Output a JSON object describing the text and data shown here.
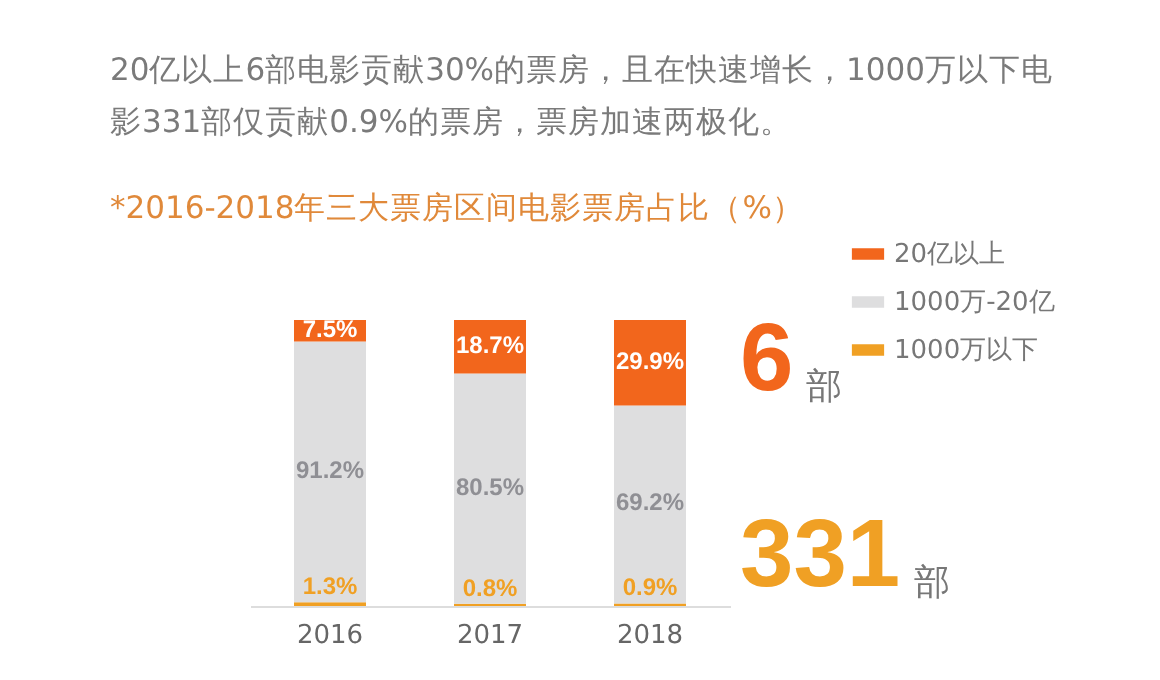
{
  "chart_data": {
    "type": "bar",
    "stacked": true,
    "subtitle": "20亿以上6部电影贡献30%的票房，且在快速增长，1000万以下电影331部仅贡献0.9%的票房，票房加速两极化。",
    "title": "*2016-2018年三大票房区间电影票房占比（%）",
    "categories": [
      "2016",
      "2017",
      "2018"
    ],
    "series": [
      {
        "name": "1000万以下",
        "color": "#f0a024",
        "values": [
          1.3,
          0.8,
          0.9
        ],
        "value_labels": [
          "1.3%",
          "0.8%",
          "0.9%"
        ]
      },
      {
        "name": "1000万-20亿",
        "color": "#dededf",
        "values": [
          91.2,
          80.5,
          69.2
        ],
        "value_labels": [
          "91.2%",
          "80.5%",
          "69.2%"
        ]
      },
      {
        "name": "20亿以上",
        "color": "#f2661c",
        "values": [
          7.5,
          18.7,
          29.9
        ],
        "value_labels": [
          "7.5%",
          "18.7%",
          "29.9%"
        ]
      }
    ],
    "legend": "top right",
    "grid": false,
    "annotations": [
      "6部",
      "331部"
    ]
  }
}
